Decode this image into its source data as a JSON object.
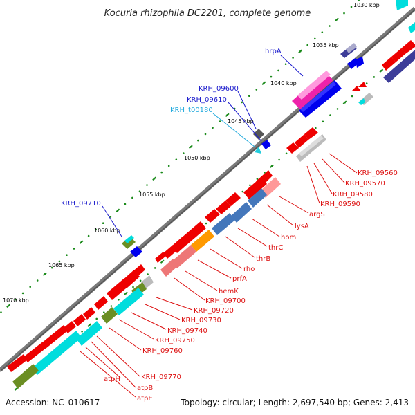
{
  "title": "Kocuria rhizophila DC2201, complete genome",
  "footer": {
    "accession": "Accession: NC_010617",
    "summary": "Topology: circular; Length: 2,697,540 bp; Genes: 2,413"
  },
  "colors": {
    "backbone": "#7a7a7a",
    "tick": "#1a8a1a",
    "forward_label": "#1a1acc",
    "trna_label": "#22aadd",
    "reverse_label": "#dd1111",
    "gene_red": "#ee0000",
    "gene_blue": "#0000ee",
    "gene_cyan": "#00dddd",
    "gene_olive": "#6b8e23",
    "gene_orange": "#ff9900",
    "gene_grey": "#bbbbbb",
    "gene_magenta": "#ee22aa",
    "gene_navy": "#3d3d99"
  },
  "scale": {
    "ticks": [
      {
        "label": "1030 kbp"
      },
      {
        "label": "1035 kbp"
      },
      {
        "label": "1040 kbp"
      },
      {
        "label": "1045 kbp"
      },
      {
        "label": "1050 kbp"
      },
      {
        "label": "1055 kbp"
      },
      {
        "label": "1060 kbp"
      },
      {
        "label": "1065 kbp"
      },
      {
        "label": "1070 kbp"
      }
    ]
  },
  "forward_labels": [
    {
      "text": "hrpA",
      "type": "cds"
    },
    {
      "text": "KRH_09600",
      "type": "cds"
    },
    {
      "text": "KRH_09610",
      "type": "cds"
    },
    {
      "text": "KRH_t00180",
      "type": "trna"
    },
    {
      "text": "KRH_09710",
      "type": "cds"
    }
  ],
  "reverse_labels": [
    {
      "text": "KRH_09560"
    },
    {
      "text": "KRH_09570"
    },
    {
      "text": "KRH_09580"
    },
    {
      "text": "KRH_09590"
    },
    {
      "text": "argS"
    },
    {
      "text": "lysA"
    },
    {
      "text": "hom"
    },
    {
      "text": "thrC"
    },
    {
      "text": "thrB"
    },
    {
      "text": "rho"
    },
    {
      "text": "prfA"
    },
    {
      "text": "hemK"
    },
    {
      "text": "KRH_09700"
    },
    {
      "text": "KRH_09720"
    },
    {
      "text": "KRH_09730"
    },
    {
      "text": "KRH_09740"
    },
    {
      "text": "KRH_09750"
    },
    {
      "text": "KRH_09760"
    },
    {
      "text": "KRH_09770"
    },
    {
      "text": "atpB"
    },
    {
      "text": "atpH"
    },
    {
      "text": "atpE"
    }
  ]
}
